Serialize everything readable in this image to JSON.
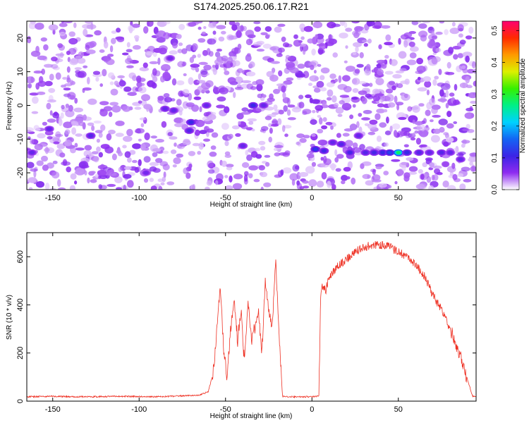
{
  "title": "S174.2025.250.06.17.R21",
  "chart_data": [
    {
      "type": "heatmap",
      "xlabel": "Height of straight line (km)",
      "ylabel": "Frequency (Hz)",
      "xlim": [
        -165,
        95
      ],
      "ylim": [
        -25,
        25
      ],
      "xticks": [
        -150,
        -100,
        -50,
        0,
        50
      ],
      "yticks": [
        -20,
        -10,
        0,
        10,
        20
      ],
      "grid": false,
      "colorbar": {
        "label": "Normalized spectral amplitude",
        "range": [
          0.0,
          0.53
        ],
        "ticks": [
          "0.0",
          "0.1",
          "0.2",
          "0.3",
          "0.4",
          "0.5"
        ],
        "colors": [
          "#ffffff",
          "#8e2bf0",
          "#3b24e6",
          "#1464f4",
          "#00d2ff",
          "#00f086",
          "#36f000",
          "#dcf000",
          "#ff9a00",
          "#ff2a00",
          "#ff0070"
        ]
      },
      "background_level": 0.03,
      "hotspots": [
        {
          "x": 2,
          "y": -13,
          "amp": 0.12
        },
        {
          "x": 7,
          "y": -13.5,
          "amp": 0.1
        },
        {
          "x": 12,
          "y": -11,
          "amp": 0.08
        },
        {
          "x": 17,
          "y": -11.5,
          "amp": 0.09
        },
        {
          "x": 22,
          "y": -14,
          "amp": 0.1
        },
        {
          "x": 27,
          "y": -9,
          "amp": 0.08
        },
        {
          "x": 31,
          "y": -14,
          "amp": 0.09
        },
        {
          "x": 36,
          "y": -14,
          "amp": 0.1
        },
        {
          "x": 41,
          "y": -14,
          "amp": 0.11
        },
        {
          "x": 45,
          "y": -14,
          "amp": 0.13
        },
        {
          "x": 50,
          "y": -14,
          "amp": 0.28
        },
        {
          "x": 55,
          "y": -14,
          "amp": 0.11
        },
        {
          "x": 62,
          "y": -14,
          "amp": 0.09
        },
        {
          "x": 68,
          "y": -14,
          "amp": 0.08
        },
        {
          "x": 75,
          "y": -14,
          "amp": 0.09
        },
        {
          "x": 80,
          "y": -14,
          "amp": 0.08
        },
        {
          "x": 86,
          "y": -16,
          "amp": 0.08
        },
        {
          "x": -34,
          "y": 0,
          "amp": 0.11
        },
        {
          "x": -28,
          "y": 0,
          "amp": 0.08
        },
        {
          "x": -40,
          "y": -12,
          "amp": 0.08
        },
        {
          "x": -61,
          "y": 0,
          "amp": 0.08
        },
        {
          "x": -70,
          "y": -5,
          "amp": 0.11
        },
        {
          "x": -71,
          "y": -7.5,
          "amp": 0.09
        },
        {
          "x": -80,
          "y": -1.5,
          "amp": 0.08
        },
        {
          "x": -85,
          "y": -1,
          "amp": 0.08
        },
        {
          "x": -128,
          "y": -9,
          "amp": 0.09
        },
        {
          "x": -152,
          "y": -7,
          "amp": 0.08
        },
        {
          "x": -162,
          "y": -14,
          "amp": 0.08
        },
        {
          "x": -82,
          "y": 14,
          "amp": 0.07
        },
        {
          "x": -96,
          "y": -20,
          "amp": 0.07
        }
      ]
    },
    {
      "type": "line",
      "xlabel": "Height of straight line (km)",
      "ylabel": "SNR (10 * v/v)",
      "xlim": [
        -165,
        95
      ],
      "ylim": [
        0,
        700
      ],
      "xticks": [
        -150,
        -100,
        -50,
        0,
        50
      ],
      "yticks": [
        0,
        200,
        400,
        600
      ],
      "grid": false,
      "series": [
        {
          "color": "#ee3124",
          "x": [
            -165,
            -150,
            -130,
            -110,
            -90,
            -75,
            -65,
            -60,
            -57,
            -55,
            -53,
            -51,
            -49,
            -47,
            -45,
            -43,
            -41,
            -39,
            -37,
            -35,
            -33,
            -31,
            -29,
            -27,
            -25,
            -23,
            -21,
            -19,
            -18,
            -17,
            -15,
            -10,
            -5,
            0,
            4,
            5,
            6,
            8,
            10,
            15,
            20,
            25,
            30,
            35,
            40,
            45,
            50,
            55,
            60,
            65,
            70,
            75,
            80,
            85,
            90,
            93
          ],
          "y": [
            18,
            20,
            18,
            20,
            18,
            22,
            25,
            40,
            120,
            300,
            480,
            200,
            100,
            300,
            420,
            250,
            380,
            150,
            420,
            260,
            300,
            380,
            200,
            500,
            380,
            300,
            590,
            280,
            140,
            20,
            18,
            18,
            18,
            18,
            22,
            420,
            480,
            460,
            520,
            560,
            590,
            620,
            640,
            650,
            650,
            640,
            620,
            600,
            570,
            520,
            440,
            380,
            300,
            200,
            90,
            20
          ]
        }
      ]
    }
  ]
}
